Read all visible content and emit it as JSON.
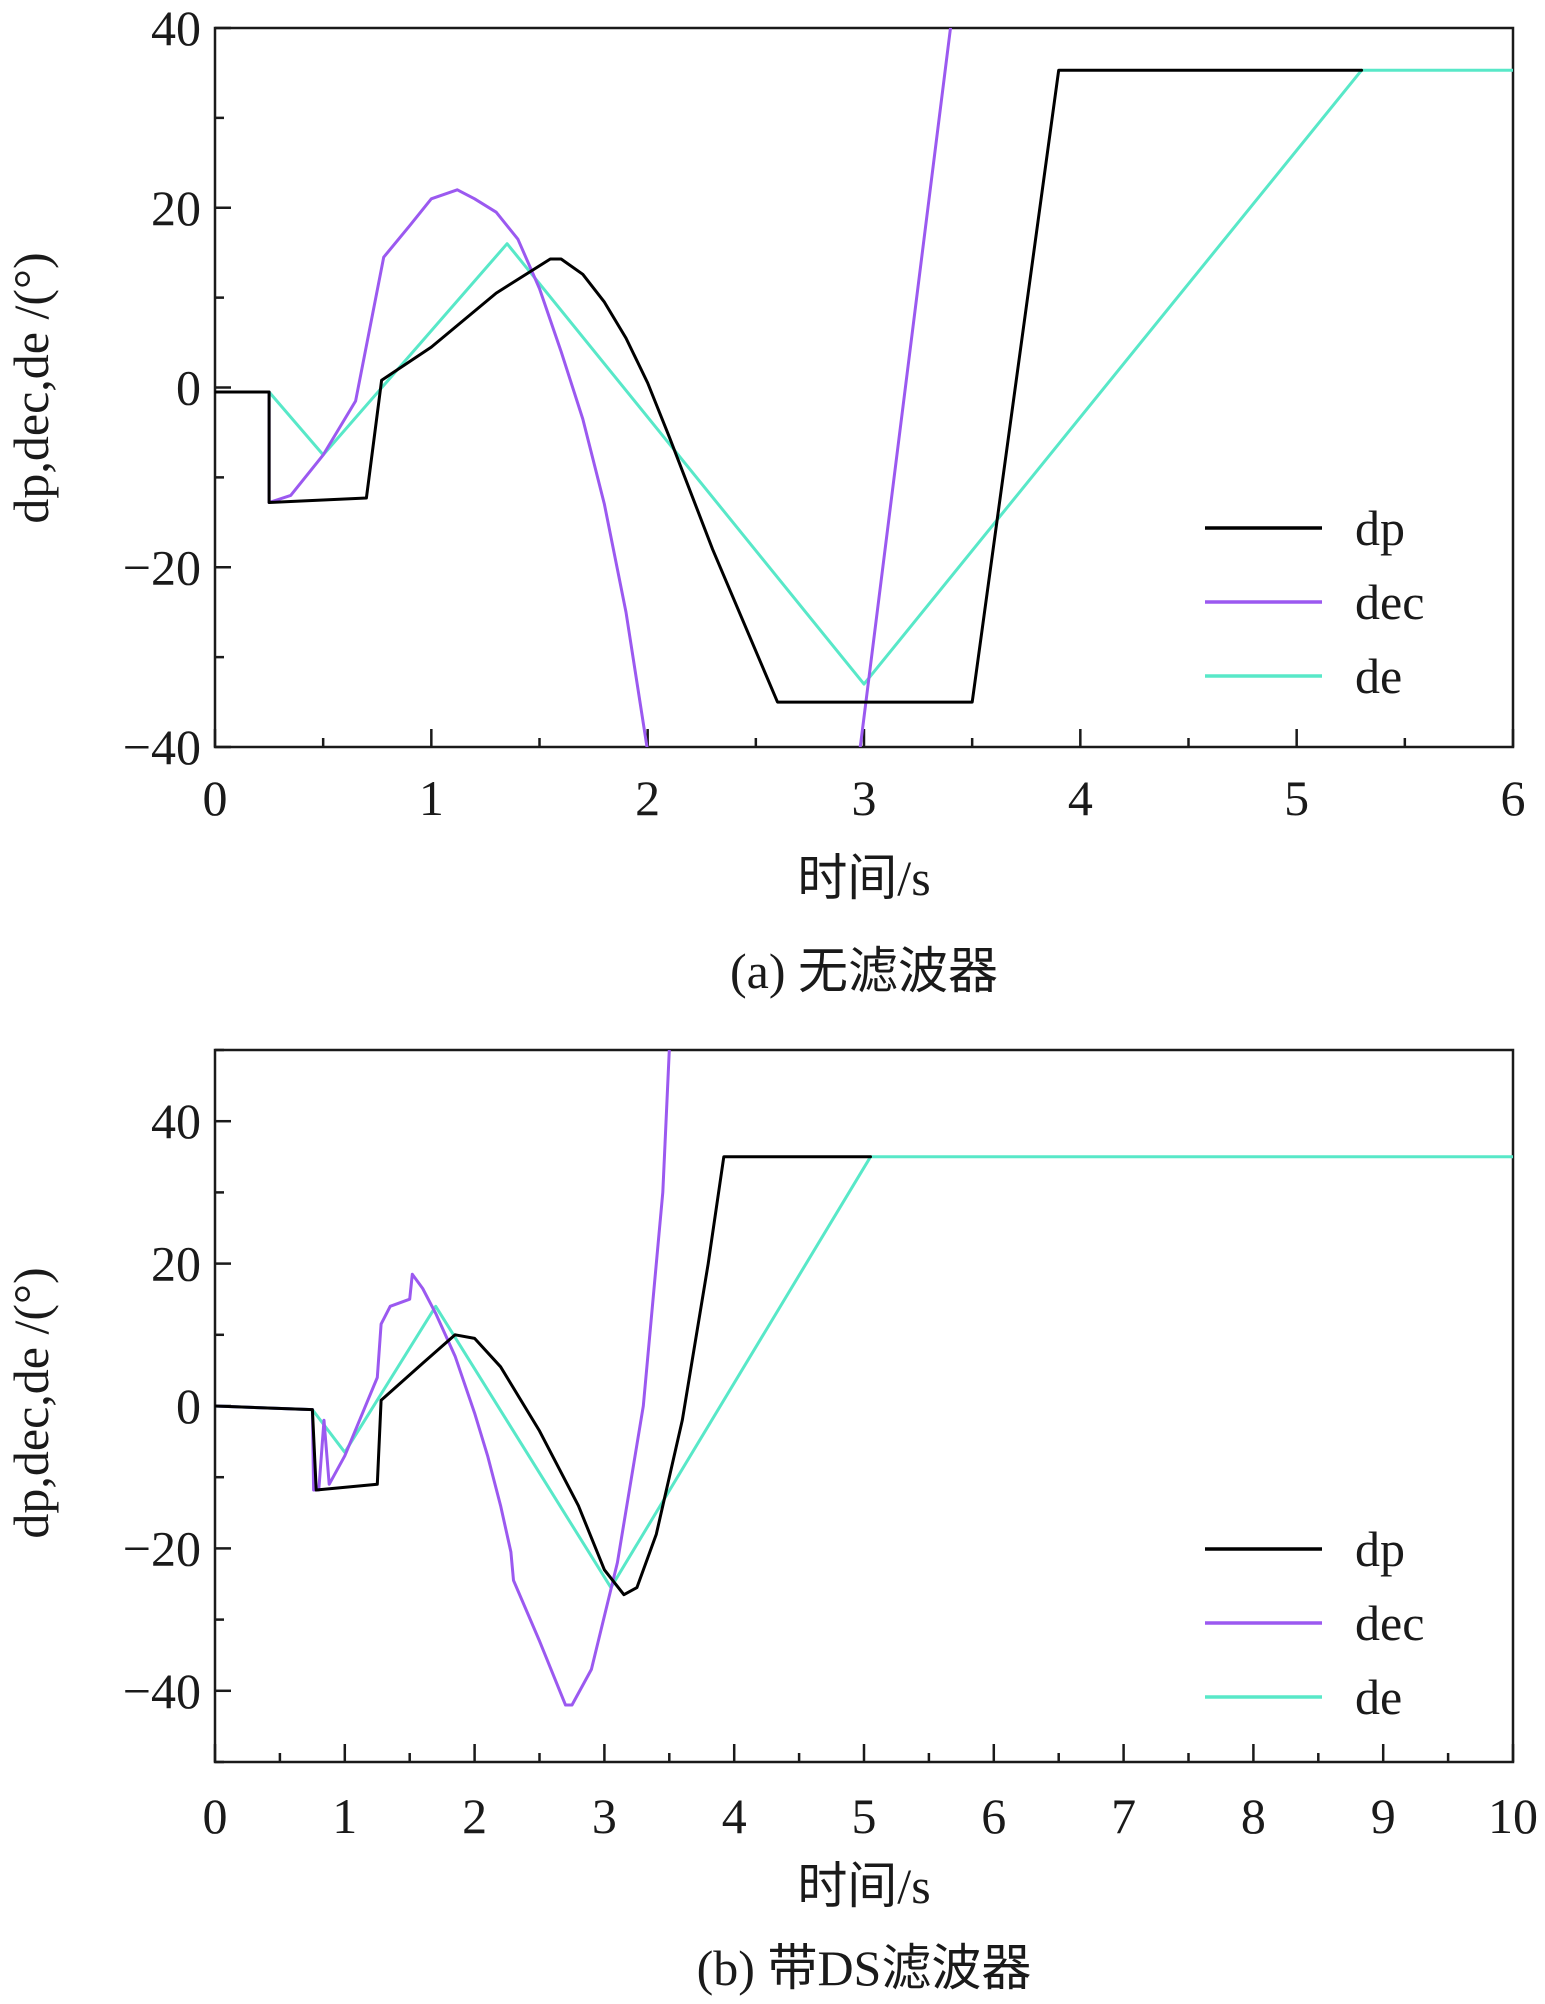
{
  "chart_data": [
    {
      "type": "line",
      "caption": "(a) 无滤波器",
      "xlabel": "时间/s",
      "ylabel": "dp,dec,de /(°)",
      "xlim": [
        0,
        6
      ],
      "ylim": [
        -40,
        40
      ],
      "x_ticks": [
        0,
        1,
        2,
        3,
        4,
        5,
        6
      ],
      "y_ticks": [
        -40,
        -20,
        0,
        20,
        40
      ],
      "x_tick_labels": [
        "0",
        "1",
        "2",
        "3",
        "4",
        "5",
        "6"
      ],
      "y_tick_labels": [
        "−40",
        "−20",
        "0",
        "20",
        "40"
      ],
      "legend_position": "bottom-right",
      "series": [
        {
          "name": "dp",
          "color": "#000000",
          "points": [
            [
              0,
              -0.5
            ],
            [
              0.25,
              -0.5
            ],
            [
              0.25,
              -12.8
            ],
            [
              0.7,
              -12.3
            ],
            [
              0.77,
              0.8
            ],
            [
              1.0,
              4.5
            ],
            [
              1.3,
              10.5
            ],
            [
              1.55,
              14.3
            ],
            [
              1.6,
              14.3
            ],
            [
              1.7,
              12.6
            ],
            [
              1.8,
              9.5
            ],
            [
              1.9,
              5.5
            ],
            [
              2.0,
              0.5
            ],
            [
              2.1,
              -5.5
            ],
            [
              2.3,
              -18
            ],
            [
              2.6,
              -35
            ],
            [
              3.5,
              -35
            ],
            [
              3.9,
              35.3
            ],
            [
              5.3,
              35.3
            ]
          ]
        },
        {
          "name": "dec",
          "color": "#9b59f0",
          "points": [
            [
              0,
              -0.5
            ],
            [
              0.25,
              -0.5
            ],
            [
              0.25,
              -12.8
            ],
            [
              0.35,
              -12.0
            ],
            [
              0.5,
              -7.5
            ],
            [
              0.65,
              -1.5
            ],
            [
              0.78,
              14.5
            ],
            [
              0.9,
              18
            ],
            [
              1.0,
              21
            ],
            [
              1.12,
              22
            ],
            [
              1.2,
              21
            ],
            [
              1.3,
              19.5
            ],
            [
              1.4,
              16.5
            ],
            [
              1.5,
              11
            ],
            [
              1.6,
              4
            ],
            [
              1.7,
              -3.5
            ],
            [
              1.8,
              -13
            ],
            [
              1.9,
              -25
            ],
            [
              2.0,
              -40.5
            ],
            [
              2.98,
              -40.5
            ],
            [
              3.4,
              40
            ]
          ]
        },
        {
          "name": "de",
          "color": "#58e8c8",
          "points": [
            [
              0,
              -0.5
            ],
            [
              0.25,
              -0.5
            ],
            [
              0.5,
              -7.5
            ],
            [
              1.35,
              16
            ],
            [
              3.0,
              -33
            ],
            [
              5.3,
              35.3
            ],
            [
              6.0,
              35.3
            ]
          ]
        }
      ]
    },
    {
      "type": "line",
      "caption": "(b) 带DS滤波器",
      "xlabel": "时间/s",
      "ylabel": "dp,dec,de /(°)",
      "xlim": [
        0,
        10
      ],
      "ylim": [
        -50,
        50
      ],
      "x_ticks": [
        0,
        1,
        2,
        3,
        4,
        5,
        6,
        7,
        8,
        9,
        10
      ],
      "y_ticks": [
        -40,
        -20,
        0,
        20,
        40
      ],
      "x_tick_labels": [
        "0",
        "1",
        "2",
        "3",
        "4",
        "5",
        "6",
        "7",
        "8",
        "9",
        "10"
      ],
      "y_tick_labels": [
        "−40",
        "−20",
        "0",
        "20",
        "40"
      ],
      "legend_position": "bottom-right",
      "series": [
        {
          "name": "dp",
          "color": "#000000",
          "points": [
            [
              0,
              0
            ],
            [
              0.75,
              -0.5
            ],
            [
              0.78,
              -11.8
            ],
            [
              1.25,
              -11
            ],
            [
              1.28,
              0.8
            ],
            [
              1.6,
              6
            ],
            [
              1.85,
              10
            ],
            [
              2.0,
              9.5
            ],
            [
              2.2,
              5.5
            ],
            [
              2.5,
              -3.5
            ],
            [
              2.8,
              -14
            ],
            [
              3.0,
              -23
            ],
            [
              3.15,
              -26.5
            ],
            [
              3.25,
              -25.5
            ],
            [
              3.4,
              -18
            ],
            [
              3.6,
              -2
            ],
            [
              3.8,
              20
            ],
            [
              3.92,
              35
            ],
            [
              5.05,
              35
            ]
          ]
        },
        {
          "name": "dec",
          "color": "#9b59f0",
          "points": [
            [
              0,
              0
            ],
            [
              0.75,
              -0.5
            ],
            [
              0.76,
              -11.8
            ],
            [
              0.8,
              -11.8
            ],
            [
              0.84,
              -2
            ],
            [
              0.88,
              -11
            ],
            [
              1.0,
              -7
            ],
            [
              1.25,
              4
            ],
            [
              1.28,
              11.5
            ],
            [
              1.35,
              14
            ],
            [
              1.5,
              15
            ],
            [
              1.52,
              18.5
            ],
            [
              1.6,
              16.5
            ],
            [
              1.7,
              13
            ],
            [
              1.85,
              7
            ],
            [
              2.0,
              -1
            ],
            [
              2.1,
              -7
            ],
            [
              2.2,
              -14
            ],
            [
              2.28,
              -20.5
            ],
            [
              2.3,
              -24.5
            ],
            [
              2.5,
              -33
            ],
            [
              2.7,
              -42
            ],
            [
              2.75,
              -42
            ],
            [
              2.9,
              -37
            ],
            [
              3.1,
              -22
            ],
            [
              3.3,
              0
            ],
            [
              3.45,
              30
            ],
            [
              3.5,
              50
            ]
          ]
        },
        {
          "name": "de",
          "color": "#58e8c8",
          "points": [
            [
              0,
              0
            ],
            [
              0.75,
              -0.5
            ],
            [
              1.0,
              -6.5
            ],
            [
              1.7,
              14
            ],
            [
              3.05,
              -25.5
            ],
            [
              5.05,
              35
            ],
            [
              10,
              35
            ]
          ]
        }
      ]
    }
  ]
}
